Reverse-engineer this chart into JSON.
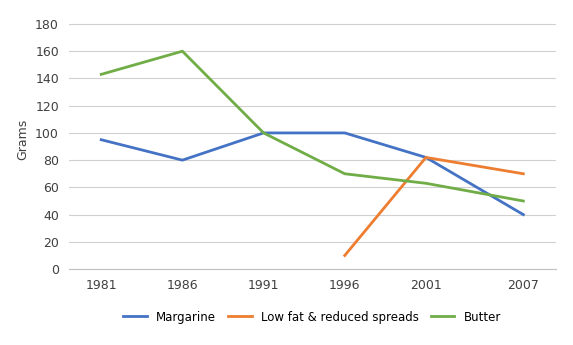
{
  "years": [
    1981,
    1986,
    1991,
    1996,
    2001,
    2007
  ],
  "margarine": [
    95,
    80,
    100,
    100,
    82,
    40
  ],
  "low_fat": [
    null,
    null,
    null,
    10,
    82,
    70
  ],
  "butter": [
    143,
    160,
    100,
    70,
    63,
    50
  ],
  "margarine_color": "#4472C4",
  "low_fat_color": "#ED7D31",
  "butter_color": "#70AD47",
  "ylabel": "Grams",
  "ylim": [
    0,
    190
  ],
  "yticks": [
    0,
    20,
    40,
    60,
    80,
    100,
    120,
    140,
    160,
    180
  ],
  "xticks": [
    1981,
    1986,
    1991,
    1996,
    2001,
    2007
  ],
  "legend_labels": [
    "Margarine",
    "Low fat & reduced spreads",
    "Butter"
  ],
  "background_color": "#ffffff",
  "grid_color": "#d0d0d0",
  "linewidth": 2.0,
  "markersize": 0
}
